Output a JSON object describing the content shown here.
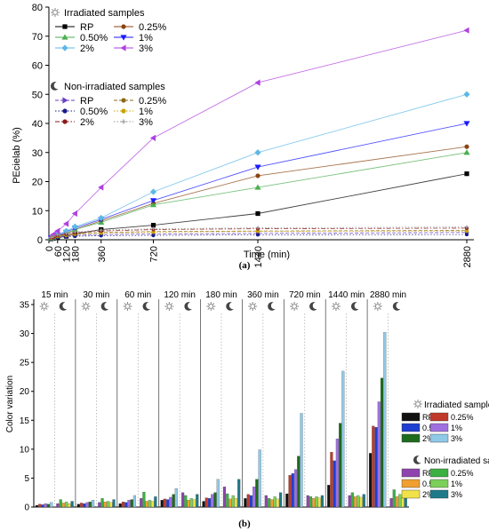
{
  "chart_data": [
    {
      "type": "line",
      "panel_label": "(a)",
      "ylabel": "PEcielab (%)",
      "xlabel": "Time (min)",
      "x_ticks": [
        0,
        60,
        120,
        180,
        360,
        720,
        1440,
        2880
      ],
      "x_tick_labels": [
        "0",
        "60",
        "120",
        "180",
        "360",
        "720",
        "1440",
        "2880"
      ],
      "ylim": [
        0,
        80
      ],
      "y_ticks": [
        0,
        10,
        20,
        30,
        40,
        50,
        60,
        70,
        80
      ],
      "legend_groups": [
        {
          "title": "Irradiated samples",
          "icon": "sun-icon"
        },
        {
          "title": "Non-irradiated samples",
          "icon": "moon-icon"
        }
      ],
      "series": [
        {
          "name": "RP",
          "group": "irradiated",
          "color": "#000000",
          "marker": "square",
          "dash": "solid",
          "x": [
            15,
            30,
            60,
            120,
            180,
            360,
            720,
            1440,
            2880
          ],
          "values": [
            0.3,
            0.5,
            0.7,
            1.2,
            2.0,
            3.5,
            5.0,
            9.0,
            22.7
          ]
        },
        {
          "name": "0.25%",
          "group": "irradiated",
          "color": "#8b4513",
          "marker": "circle",
          "dash": "solid",
          "x": [
            15,
            30,
            60,
            120,
            180,
            360,
            720,
            1440,
            2880
          ],
          "values": [
            0.5,
            0.8,
            1.3,
            2.2,
            3.5,
            6.5,
            12.5,
            22.0,
            32.0
          ]
        },
        {
          "name": "0.50%",
          "group": "irradiated",
          "color": "#4caf50",
          "marker": "triangle-up",
          "dash": "solid",
          "x": [
            15,
            30,
            60,
            120,
            180,
            360,
            720,
            1440,
            2880
          ],
          "values": [
            0.5,
            0.8,
            1.3,
            2.0,
            3.5,
            6.0,
            12.0,
            18.0,
            30.0
          ]
        },
        {
          "name": "1%",
          "group": "irradiated",
          "color": "#1a1aff",
          "marker": "triangle-down",
          "dash": "solid",
          "x": [
            15,
            30,
            60,
            120,
            180,
            360,
            720,
            1440,
            2880
          ],
          "values": [
            0.6,
            1.0,
            1.6,
            2.6,
            4.0,
            7.0,
            13.5,
            25.0,
            40.0
          ]
        },
        {
          "name": "2%",
          "group": "irradiated",
          "color": "#5cb8e6",
          "marker": "diamond",
          "dash": "solid",
          "x": [
            15,
            30,
            60,
            120,
            180,
            360,
            720,
            1440,
            2880
          ],
          "values": [
            0.7,
            1.1,
            1.8,
            3.0,
            4.5,
            7.5,
            16.5,
            30.0,
            50.0
          ]
        },
        {
          "name": "3%",
          "group": "irradiated",
          "color": "#b040e0",
          "marker": "triangle-left",
          "dash": "solid",
          "x": [
            15,
            30,
            60,
            120,
            180,
            360,
            720,
            1440,
            2880
          ],
          "values": [
            1.0,
            1.8,
            3.0,
            5.5,
            9.0,
            18.0,
            35.0,
            54.0,
            72.0
          ]
        },
        {
          "name": "RP",
          "group": "non-irradiated",
          "color": "#6a3fc0",
          "marker": "triangle-right",
          "dash": "dash",
          "x": [
            15,
            30,
            60,
            120,
            180,
            360,
            720,
            1440,
            2880
          ],
          "values": [
            0.5,
            0.7,
            1.0,
            1.3,
            1.5,
            1.8,
            2.0,
            2.2,
            2.5
          ]
        },
        {
          "name": "0.25%",
          "group": "non-irradiated",
          "color": "#8b6b1a",
          "marker": "circle",
          "dash": "dash",
          "x": [
            15,
            30,
            60,
            120,
            180,
            360,
            720,
            1440,
            2880
          ],
          "values": [
            0.6,
            0.9,
            1.2,
            1.6,
            2.0,
            2.5,
            2.8,
            3.0,
            3.2
          ]
        },
        {
          "name": "0.50%",
          "group": "non-irradiated",
          "color": "#1a1a8a",
          "marker": "circle",
          "dash": "dot",
          "x": [
            15,
            30,
            60,
            120,
            180,
            360,
            720,
            1440,
            2880
          ],
          "values": [
            0.4,
            0.6,
            0.8,
            1.0,
            1.2,
            1.4,
            1.5,
            1.7,
            1.8
          ]
        },
        {
          "name": "1%",
          "group": "non-irradiated",
          "color": "#c9a400",
          "marker": "circle",
          "dash": "dot",
          "x": [
            15,
            30,
            60,
            120,
            180,
            360,
            720,
            1440,
            2880
          ],
          "values": [
            0.5,
            0.8,
            1.1,
            1.5,
            1.9,
            2.3,
            2.6,
            2.9,
            3.0
          ]
        },
        {
          "name": "2%",
          "group": "non-irradiated",
          "color": "#8b1a1a",
          "marker": "circle",
          "dash": "dashdot",
          "x": [
            15,
            30,
            60,
            120,
            180,
            360,
            720,
            1440,
            2880
          ],
          "values": [
            0.7,
            1.0,
            1.4,
            1.9,
            2.4,
            3.0,
            3.5,
            3.8,
            4.0
          ]
        },
        {
          "name": "3%",
          "group": "non-irradiated",
          "color": "#999999",
          "marker": "plus",
          "dash": "dot",
          "x": [
            15,
            30,
            60,
            120,
            180,
            360,
            720,
            1440,
            2880
          ],
          "values": [
            0.8,
            1.2,
            1.6,
            2.2,
            2.7,
            3.3,
            3.8,
            4.1,
            4.4
          ]
        }
      ]
    },
    {
      "type": "bar",
      "panel_label": "(b)",
      "ylabel": "Color variation",
      "ylim": [
        0,
        35
      ],
      "y_ticks": [
        0,
        5,
        10,
        15,
        20,
        25,
        30,
        35
      ],
      "categories": [
        "15 min",
        "30 min",
        "60 min",
        "120 min",
        "180 min",
        "360 min",
        "720 min",
        "1440 min",
        "2880 min"
      ],
      "legend_groups": [
        {
          "title": "Irradiated samples",
          "icon": "sun-icon"
        },
        {
          "title": "Non-irradiated samples",
          "icon": "moon-icon"
        }
      ],
      "series": [
        {
          "name": "RP",
          "group": "irradiated",
          "color": "#111111",
          "values": [
            0.3,
            0.5,
            0.6,
            1.2,
            1.0,
            1.5,
            2.3,
            3.8,
            9.3
          ]
        },
        {
          "name": "0.25%",
          "group": "irradiated",
          "color": "#c0392b",
          "values": [
            0.5,
            0.7,
            0.9,
            1.4,
            1.6,
            2.2,
            5.5,
            9.5,
            14.0
          ]
        },
        {
          "name": "0.50%",
          "group": "irradiated",
          "color": "#1f3fd0",
          "values": [
            0.4,
            0.6,
            0.8,
            1.3,
            1.5,
            2.0,
            5.8,
            8.0,
            13.8
          ]
        },
        {
          "name": "1%",
          "group": "irradiated",
          "color": "#a070e0",
          "values": [
            0.6,
            0.8,
            1.2,
            1.7,
            2.2,
            3.5,
            6.5,
            11.8,
            18.2
          ]
        },
        {
          "name": "2%",
          "group": "irradiated",
          "color": "#1e6b1e",
          "values": [
            0.5,
            0.9,
            1.3,
            2.2,
            2.5,
            4.8,
            8.8,
            14.5,
            22.3
          ]
        },
        {
          "name": "3%",
          "group": "irradiated",
          "color": "#8fc9e8",
          "values": [
            0.8,
            1.2,
            2.0,
            3.2,
            4.8,
            9.9,
            16.2,
            23.5,
            30.2
          ]
        },
        {
          "name": "RP",
          "group": "non-irradiated",
          "color": "#8e44ad",
          "values": [
            0.6,
            0.8,
            1.5,
            2.5,
            3.5,
            2.0,
            2.0,
            2.0,
            1.5
          ]
        },
        {
          "name": "0.25%",
          "group": "non-irradiated",
          "color": "#3cb043",
          "values": [
            1.3,
            1.5,
            2.6,
            2.0,
            2.3,
            1.5,
            1.8,
            2.5,
            3.0
          ]
        },
        {
          "name": "0.50%",
          "group": "non-irradiated",
          "color": "#f0a030",
          "values": [
            0.7,
            0.9,
            1.0,
            1.2,
            1.4,
            1.3,
            1.5,
            1.8,
            1.8
          ]
        },
        {
          "name": "1%",
          "group": "non-irradiated",
          "color": "#7ccf5a",
          "values": [
            0.9,
            1.0,
            1.2,
            1.5,
            2.0,
            1.8,
            1.8,
            2.0,
            2.2
          ]
        },
        {
          "name": "2%",
          "group": "non-irradiated",
          "color": "#f2e24a",
          "values": [
            0.6,
            0.8,
            1.0,
            1.3,
            1.5,
            1.4,
            1.6,
            1.7,
            1.6
          ]
        },
        {
          "name": "3%",
          "group": "non-irradiated",
          "color": "#1e7a8a",
          "values": [
            1.0,
            1.3,
            1.8,
            2.2,
            4.8,
            2.5,
            2.0,
            2.2,
            2.0
          ]
        }
      ]
    }
  ]
}
